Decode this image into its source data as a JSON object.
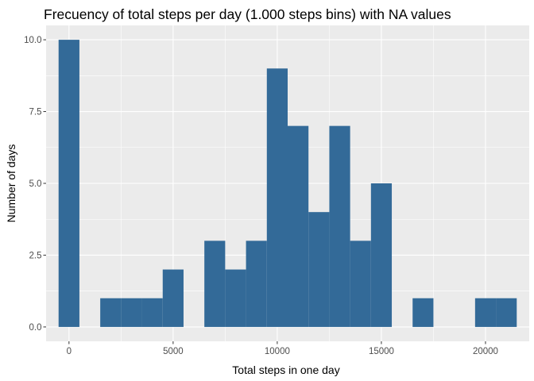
{
  "chart_data": {
    "type": "bar",
    "title": "Frecuency of total steps per day (1.000 steps bins) with NA values",
    "xlabel": "Total steps in one day",
    "ylabel": "Number of days",
    "bin_width": 1000,
    "xlim": [
      -1100,
      22100
    ],
    "ylim": [
      -0.5,
      10.5
    ],
    "x_ticks": [
      0,
      5000,
      10000,
      15000,
      20000
    ],
    "x_tick_labels": [
      "0",
      "5000",
      "10000",
      "15000",
      "20000"
    ],
    "y_ticks": [
      0,
      2.5,
      5,
      7.5,
      10
    ],
    "y_tick_labels": [
      "0.0",
      "2.5",
      "5.0",
      "7.5",
      "10.0"
    ],
    "bins": [
      {
        "center": 0,
        "count": 10
      },
      {
        "center": 1000,
        "count": 0
      },
      {
        "center": 2000,
        "count": 1
      },
      {
        "center": 3000,
        "count": 1
      },
      {
        "center": 4000,
        "count": 1
      },
      {
        "center": 5000,
        "count": 2
      },
      {
        "center": 6000,
        "count": 0
      },
      {
        "center": 7000,
        "count": 3
      },
      {
        "center": 8000,
        "count": 2
      },
      {
        "center": 9000,
        "count": 3
      },
      {
        "center": 10000,
        "count": 9
      },
      {
        "center": 11000,
        "count": 7
      },
      {
        "center": 12000,
        "count": 4
      },
      {
        "center": 13000,
        "count": 7
      },
      {
        "center": 14000,
        "count": 3
      },
      {
        "center": 15000,
        "count": 5
      },
      {
        "center": 16000,
        "count": 0
      },
      {
        "center": 17000,
        "count": 1
      },
      {
        "center": 18000,
        "count": 0
      },
      {
        "center": 19000,
        "count": 0
      },
      {
        "center": 20000,
        "count": 1
      },
      {
        "center": 21000,
        "count": 1
      }
    ],
    "bar_color": "#336A98",
    "panel_color": "#EBEBEB",
    "grid_major_color": "#FFFFFF",
    "grid": true,
    "legend": "none"
  }
}
